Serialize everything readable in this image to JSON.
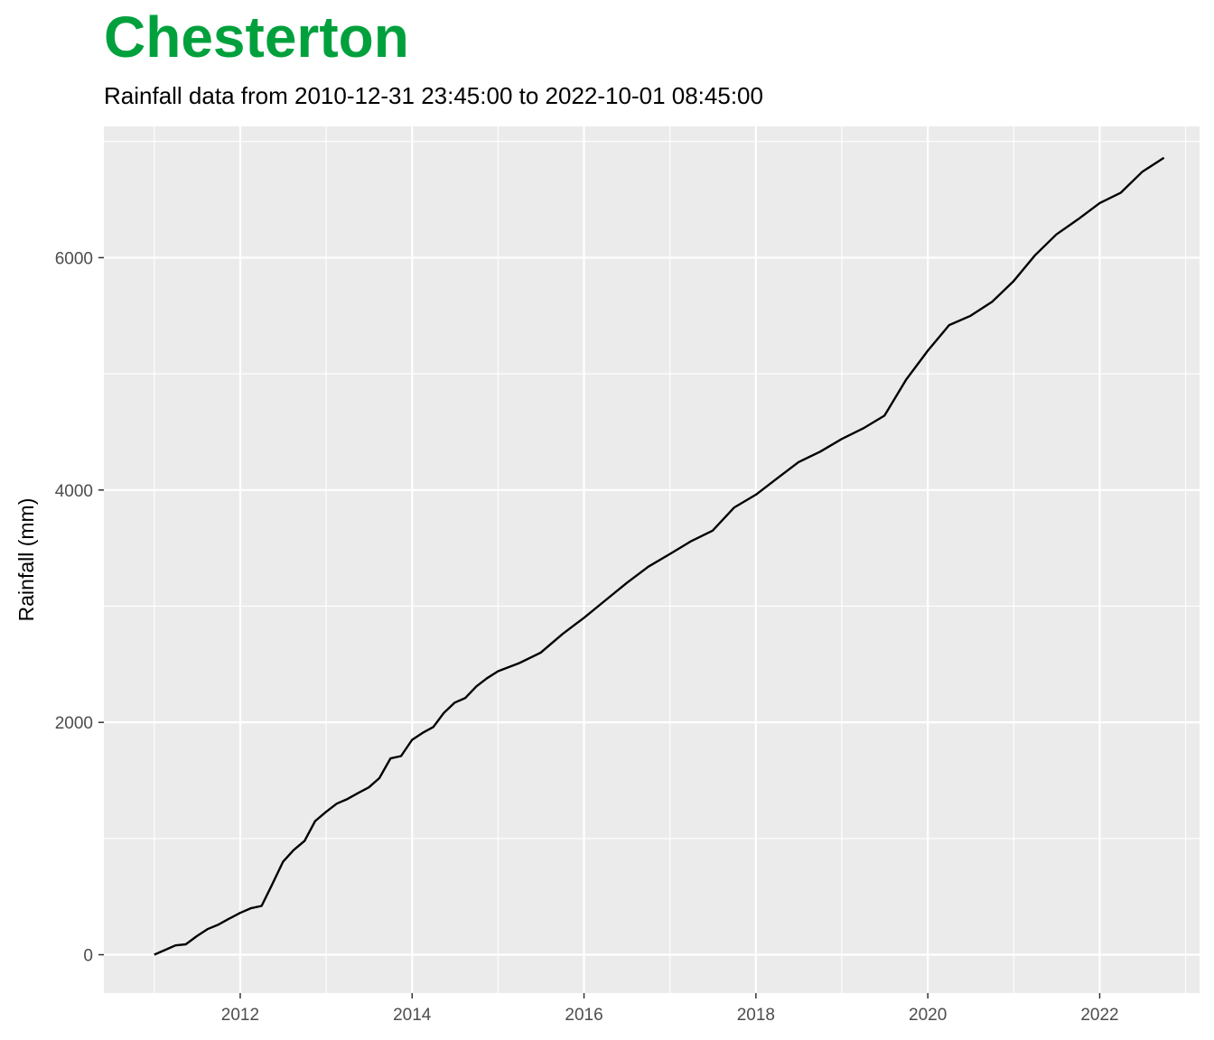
{
  "header": {
    "title": "Chesterton",
    "subtitle": "Rainfall data from 2010-12-31 23:45:00 to 2022-10-01 08:45:00",
    "title_color": "#00a03c"
  },
  "chart_data": {
    "type": "line",
    "title": "Chesterton",
    "subtitle": "Rainfall data from 2010-12-31 23:45:00 to 2022-10-01 08:45:00",
    "xlabel": "",
    "ylabel": "Rainfall (mm)",
    "xlim": [
      "2010-06-01",
      "2023-03-01"
    ],
    "ylim": [
      -330,
      7130
    ],
    "x_ticks": [
      "2012",
      "2014",
      "2016",
      "2018",
      "2020",
      "2022"
    ],
    "y_ticks": [
      0,
      2000,
      4000,
      6000
    ],
    "grid": true,
    "panel_color": "#ebebeb",
    "line_color": "#000000",
    "series": [
      {
        "x": [
          "2011-01-01",
          "2011-02-15",
          "2011-04-01",
          "2011-05-15",
          "2011-07-01",
          "2011-08-15",
          "2011-10-01",
          "2011-11-15",
          "2012-01-01",
          "2012-02-15",
          "2012-04-01",
          "2012-05-15",
          "2012-07-01",
          "2012-08-15",
          "2012-10-01",
          "2012-11-15",
          "2013-01-01",
          "2013-02-15",
          "2013-04-01",
          "2013-05-15",
          "2013-07-01",
          "2013-08-15",
          "2013-10-01",
          "2013-11-15",
          "2014-01-01",
          "2014-02-15",
          "2014-04-01",
          "2014-05-15",
          "2014-07-01",
          "2014-08-15",
          "2014-10-01",
          "2014-11-15",
          "2015-01-01",
          "2015-04-01",
          "2015-07-01",
          "2015-10-01",
          "2016-01-01",
          "2016-04-01",
          "2016-07-01",
          "2016-10-01",
          "2017-01-01",
          "2017-04-01",
          "2017-07-01",
          "2017-10-01",
          "2018-01-01",
          "2018-04-01",
          "2018-07-01",
          "2018-10-01",
          "2019-01-01",
          "2019-04-01",
          "2019-07-01",
          "2019-10-01",
          "2020-01-01",
          "2020-04-01",
          "2020-07-01",
          "2020-10-01",
          "2021-01-01",
          "2021-04-01",
          "2021-07-01",
          "2021-10-01",
          "2022-01-01",
          "2022-04-01",
          "2022-07-01",
          "2022-10-01"
        ],
        "values": [
          0,
          40,
          80,
          90,
          160,
          220,
          260,
          310,
          360,
          400,
          420,
          600,
          800,
          900,
          980,
          1150,
          1230,
          1300,
          1340,
          1390,
          1440,
          1520,
          1690,
          1710,
          1850,
          1910,
          1960,
          2080,
          2170,
          2210,
          2310,
          2380,
          2440,
          2510,
          2600,
          2760,
          2900,
          3050,
          3200,
          3340,
          3450,
          3560,
          3650,
          3850,
          3960,
          4100,
          4240,
          4330,
          4440,
          4530,
          4640,
          4950,
          5200,
          5420,
          5500,
          5620,
          5800,
          6020,
          6200,
          6330,
          6470,
          6560,
          6740,
          6860
        ]
      }
    ]
  }
}
